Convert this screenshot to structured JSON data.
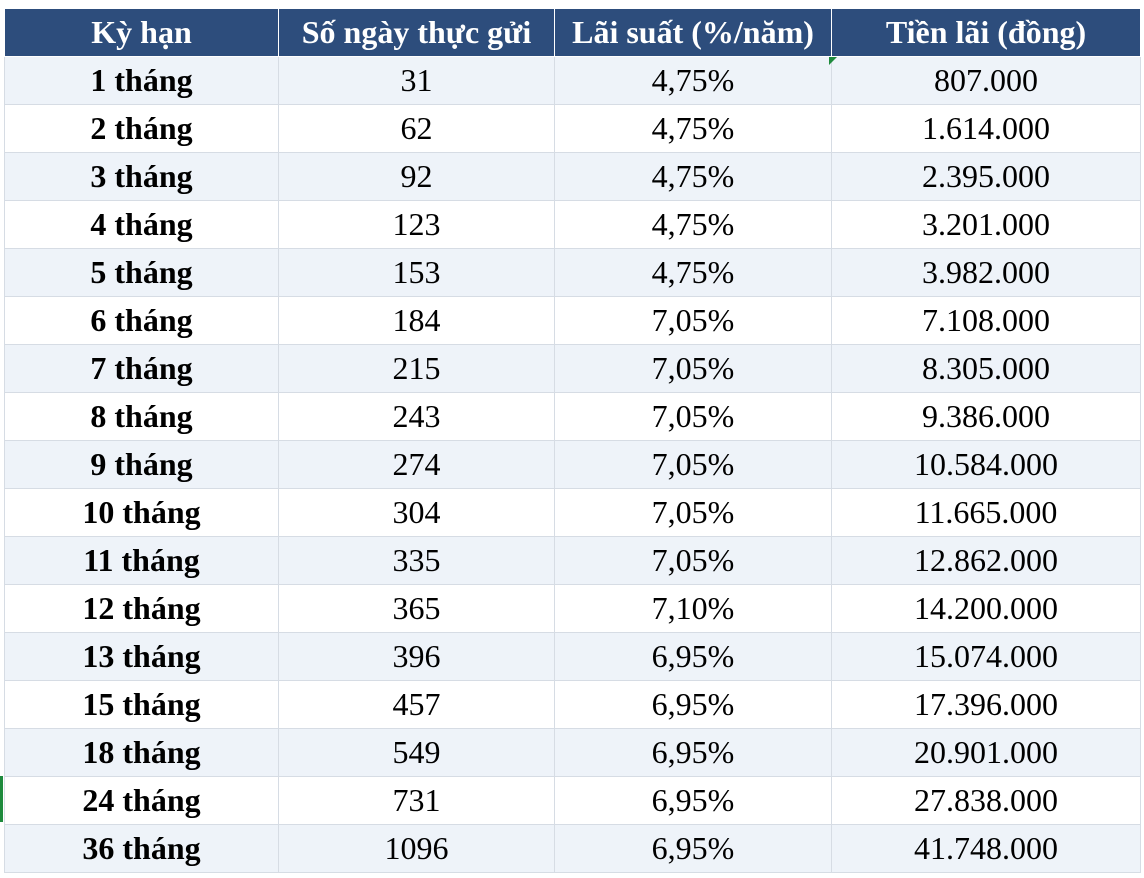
{
  "table": {
    "header": [
      "Kỳ hạn",
      "Số ngày thực gửi",
      "Lãi suất (%/năm)",
      "Tiền lãi (đồng)"
    ],
    "rows": [
      [
        "1 tháng",
        "31",
        "4,75%",
        "807.000"
      ],
      [
        "2 tháng",
        "62",
        "4,75%",
        "1.614.000"
      ],
      [
        "3 tháng",
        "92",
        "4,75%",
        "2.395.000"
      ],
      [
        "4 tháng",
        "123",
        "4,75%",
        "3.201.000"
      ],
      [
        "5 tháng",
        "153",
        "4,75%",
        "3.982.000"
      ],
      [
        "6 tháng",
        "184",
        "7,05%",
        "7.108.000"
      ],
      [
        "7 tháng",
        "215",
        "7,05%",
        "8.305.000"
      ],
      [
        "8 tháng",
        "243",
        "7,05%",
        "9.386.000"
      ],
      [
        "9 tháng",
        "274",
        "7,05%",
        "10.584.000"
      ],
      [
        "10 tháng",
        "304",
        "7,05%",
        "11.665.000"
      ],
      [
        "11 tháng",
        "335",
        "7,05%",
        "12.862.000"
      ],
      [
        "12 tháng",
        "365",
        "7,10%",
        "14.200.000"
      ],
      [
        "13 tháng",
        "396",
        "6,95%",
        "15.074.000"
      ],
      [
        "15 tháng",
        "457",
        "6,95%",
        "17.396.000"
      ],
      [
        "18 tháng",
        "549",
        "6,95%",
        "20.901.000"
      ],
      [
        "24 tháng",
        "731",
        "6,95%",
        "27.838.000"
      ],
      [
        "36 tháng",
        "1096",
        "6,95%",
        "41.748.000"
      ]
    ]
  }
}
